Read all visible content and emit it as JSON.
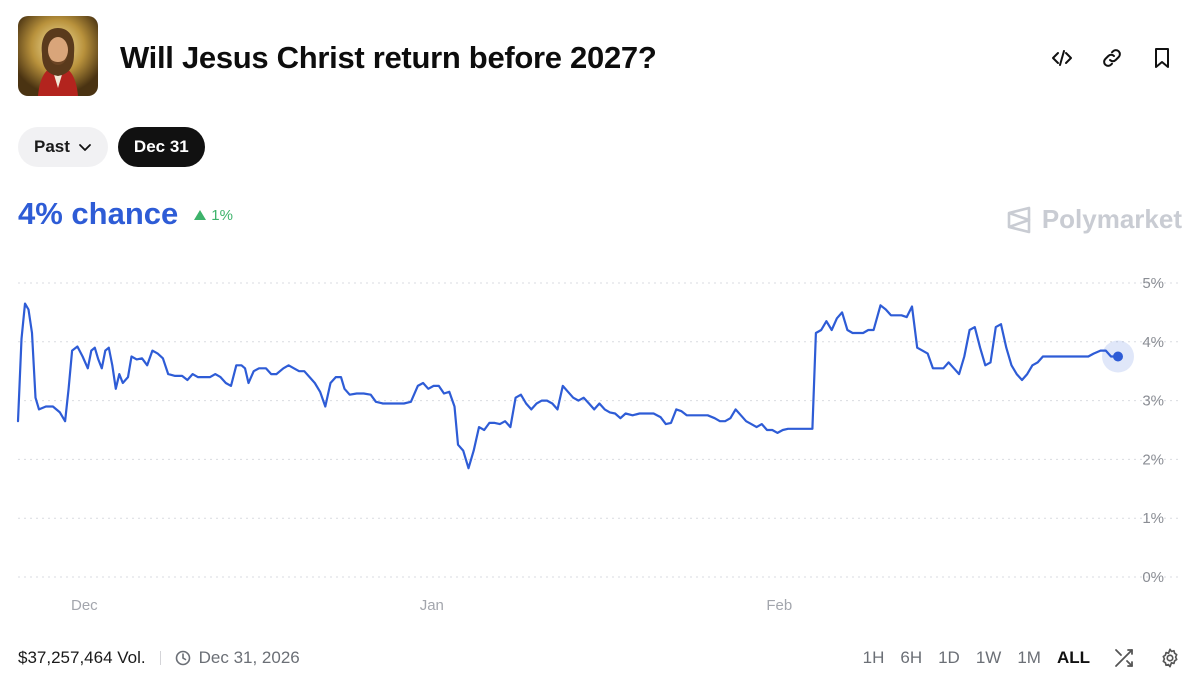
{
  "header": {
    "title": "Will Jesus Christ return before 2027?",
    "image_icon": "jesus-portrait",
    "actions": [
      {
        "name": "embed-code-icon",
        "label": "Embed"
      },
      {
        "name": "link-icon",
        "label": "Copy link"
      },
      {
        "name": "bookmark-icon",
        "label": "Bookmark"
      }
    ]
  },
  "filters": {
    "past_label": "Past",
    "active_label": "Dec 31"
  },
  "summary": {
    "chance": "4% chance",
    "change": "1%",
    "change_direction": "up"
  },
  "brand": {
    "name": "Polymarket"
  },
  "footer": {
    "volume": "$37,257,464 Vol.",
    "end_date": "Dec 31, 2026",
    "ranges": [
      "1H",
      "6H",
      "1D",
      "1W",
      "1M",
      "ALL"
    ],
    "active_range": "ALL"
  },
  "colors": {
    "line": "#2e5cd6",
    "positive": "#3db36b",
    "grid": "#d9dbe0",
    "axis_text": "#8a8d94"
  },
  "chart_data": {
    "type": "line",
    "ylim": [
      0,
      5
    ],
    "y_ticks": [
      5,
      4,
      3,
      2,
      1,
      0
    ],
    "y_tick_labels": [
      "5%",
      "4%",
      "3%",
      "2%",
      "1%",
      "0%"
    ],
    "x_tick_labels": [
      "Dec",
      "Jan",
      "Feb"
    ],
    "x_tick_positions": [
      3.8,
      23.7,
      43.6
    ],
    "xlim": [
      0,
      63
    ],
    "y_unit": "%",
    "grid": true,
    "series": [
      {
        "values": [
          [
            0,
            2.65
          ],
          [
            0.2,
            4.05
          ],
          [
            0.4,
            4.65
          ],
          [
            0.6,
            4.55
          ],
          [
            0.8,
            4.15
          ],
          [
            1.0,
            3.05
          ],
          [
            1.2,
            2.85
          ],
          [
            1.6,
            2.9
          ],
          [
            2.0,
            2.9
          ],
          [
            2.4,
            2.8
          ],
          [
            2.7,
            2.65
          ],
          [
            2.9,
            3.2
          ],
          [
            3.1,
            3.85
          ],
          [
            3.4,
            3.92
          ],
          [
            3.7,
            3.75
          ],
          [
            4.0,
            3.55
          ],
          [
            4.2,
            3.85
          ],
          [
            4.4,
            3.9
          ],
          [
            4.6,
            3.7
          ],
          [
            4.8,
            3.55
          ],
          [
            5.0,
            3.85
          ],
          [
            5.2,
            3.9
          ],
          [
            5.4,
            3.6
          ],
          [
            5.6,
            3.2
          ],
          [
            5.8,
            3.45
          ],
          [
            6.0,
            3.3
          ],
          [
            6.3,
            3.4
          ],
          [
            6.5,
            3.75
          ],
          [
            6.8,
            3.7
          ],
          [
            7.1,
            3.72
          ],
          [
            7.4,
            3.6
          ],
          [
            7.7,
            3.85
          ],
          [
            8.0,
            3.8
          ],
          [
            8.3,
            3.72
          ],
          [
            8.6,
            3.45
          ],
          [
            9.0,
            3.42
          ],
          [
            9.4,
            3.42
          ],
          [
            9.7,
            3.35
          ],
          [
            10.0,
            3.45
          ],
          [
            10.3,
            3.4
          ],
          [
            10.6,
            3.4
          ],
          [
            11.0,
            3.4
          ],
          [
            11.3,
            3.45
          ],
          [
            11.6,
            3.4
          ],
          [
            11.9,
            3.3
          ],
          [
            12.2,
            3.25
          ],
          [
            12.5,
            3.6
          ],
          [
            12.8,
            3.6
          ],
          [
            13.0,
            3.55
          ],
          [
            13.2,
            3.3
          ],
          [
            13.5,
            3.5
          ],
          [
            13.8,
            3.55
          ],
          [
            14.2,
            3.55
          ],
          [
            14.5,
            3.45
          ],
          [
            14.8,
            3.45
          ],
          [
            15.2,
            3.55
          ],
          [
            15.5,
            3.6
          ],
          [
            15.8,
            3.55
          ],
          [
            16.1,
            3.5
          ],
          [
            16.4,
            3.5
          ],
          [
            16.7,
            3.4
          ],
          [
            17.0,
            3.3
          ],
          [
            17.3,
            3.15
          ],
          [
            17.6,
            2.9
          ],
          [
            17.9,
            3.3
          ],
          [
            18.2,
            3.4
          ],
          [
            18.5,
            3.4
          ],
          [
            18.7,
            3.2
          ],
          [
            19.0,
            3.1
          ],
          [
            19.4,
            3.12
          ],
          [
            19.8,
            3.12
          ],
          [
            20.2,
            3.1
          ],
          [
            20.5,
            2.98
          ],
          [
            20.9,
            2.95
          ],
          [
            21.3,
            2.95
          ],
          [
            21.7,
            2.95
          ],
          [
            22.1,
            2.95
          ],
          [
            22.5,
            2.98
          ],
          [
            22.9,
            3.25
          ],
          [
            23.2,
            3.3
          ],
          [
            23.5,
            3.2
          ],
          [
            23.8,
            3.25
          ],
          [
            24.1,
            3.25
          ],
          [
            24.4,
            3.12
          ],
          [
            24.7,
            3.15
          ],
          [
            25.0,
            2.9
          ],
          [
            25.2,
            2.25
          ],
          [
            25.5,
            2.15
          ],
          [
            25.8,
            1.85
          ],
          [
            26.1,
            2.15
          ],
          [
            26.4,
            2.55
          ],
          [
            26.7,
            2.5
          ],
          [
            27.0,
            2.62
          ],
          [
            27.3,
            2.62
          ],
          [
            27.6,
            2.6
          ],
          [
            27.9,
            2.65
          ],
          [
            28.2,
            2.55
          ],
          [
            28.5,
            3.05
          ],
          [
            28.8,
            3.1
          ],
          [
            29.1,
            2.95
          ],
          [
            29.4,
            2.85
          ],
          [
            29.7,
            2.95
          ],
          [
            30.0,
            3.0
          ],
          [
            30.3,
            3.0
          ],
          [
            30.6,
            2.95
          ],
          [
            30.9,
            2.85
          ],
          [
            31.2,
            3.25
          ],
          [
            31.5,
            3.15
          ],
          [
            31.8,
            3.05
          ],
          [
            32.1,
            3.0
          ],
          [
            32.4,
            3.05
          ],
          [
            32.7,
            2.95
          ],
          [
            33.0,
            2.85
          ],
          [
            33.3,
            2.95
          ],
          [
            33.6,
            2.85
          ],
          [
            33.9,
            2.8
          ],
          [
            34.2,
            2.78
          ],
          [
            34.5,
            2.7
          ],
          [
            34.8,
            2.78
          ],
          [
            35.2,
            2.75
          ],
          [
            35.6,
            2.78
          ],
          [
            36.0,
            2.78
          ],
          [
            36.4,
            2.78
          ],
          [
            36.8,
            2.72
          ],
          [
            37.1,
            2.6
          ],
          [
            37.4,
            2.62
          ],
          [
            37.7,
            2.85
          ],
          [
            38.0,
            2.82
          ],
          [
            38.3,
            2.75
          ],
          [
            38.7,
            2.75
          ],
          [
            39.1,
            2.75
          ],
          [
            39.5,
            2.75
          ],
          [
            39.9,
            2.7
          ],
          [
            40.2,
            2.65
          ],
          [
            40.5,
            2.65
          ],
          [
            40.8,
            2.7
          ],
          [
            41.1,
            2.85
          ],
          [
            41.4,
            2.75
          ],
          [
            41.7,
            2.65
          ],
          [
            42.0,
            2.6
          ],
          [
            42.3,
            2.55
          ],
          [
            42.6,
            2.6
          ],
          [
            42.9,
            2.5
          ],
          [
            43.2,
            2.5
          ],
          [
            43.5,
            2.45
          ],
          [
            43.8,
            2.5
          ],
          [
            44.1,
            2.52
          ],
          [
            44.4,
            2.52
          ],
          [
            44.8,
            2.52
          ],
          [
            45.2,
            2.52
          ],
          [
            45.5,
            2.52
          ],
          [
            45.7,
            4.15
          ],
          [
            46.0,
            4.2
          ],
          [
            46.3,
            4.35
          ],
          [
            46.6,
            4.2
          ],
          [
            46.9,
            4.4
          ],
          [
            47.2,
            4.5
          ],
          [
            47.5,
            4.2
          ],
          [
            47.8,
            4.15
          ],
          [
            48.1,
            4.15
          ],
          [
            48.4,
            4.15
          ],
          [
            48.7,
            4.2
          ],
          [
            49.0,
            4.2
          ],
          [
            49.4,
            4.62
          ],
          [
            49.7,
            4.55
          ],
          [
            50.0,
            4.45
          ],
          [
            50.3,
            4.45
          ],
          [
            50.6,
            4.45
          ],
          [
            50.9,
            4.42
          ],
          [
            51.2,
            4.6
          ],
          [
            51.5,
            3.9
          ],
          [
            51.8,
            3.85
          ],
          [
            52.1,
            3.8
          ],
          [
            52.4,
            3.55
          ],
          [
            52.7,
            3.55
          ],
          [
            53.0,
            3.55
          ],
          [
            53.3,
            3.65
          ],
          [
            53.6,
            3.55
          ],
          [
            53.9,
            3.45
          ],
          [
            54.2,
            3.75
          ],
          [
            54.5,
            4.2
          ],
          [
            54.8,
            4.25
          ],
          [
            55.1,
            3.9
          ],
          [
            55.4,
            3.6
          ],
          [
            55.7,
            3.65
          ],
          [
            56.0,
            4.25
          ],
          [
            56.3,
            4.3
          ],
          [
            56.6,
            3.9
          ],
          [
            56.9,
            3.6
          ],
          [
            57.2,
            3.45
          ],
          [
            57.5,
            3.35
          ],
          [
            57.8,
            3.45
          ],
          [
            58.1,
            3.6
          ],
          [
            58.4,
            3.65
          ],
          [
            58.7,
            3.75
          ],
          [
            59.0,
            3.75
          ],
          [
            59.6,
            3.75
          ],
          [
            60.2,
            3.75
          ],
          [
            60.8,
            3.75
          ],
          [
            61.3,
            3.75
          ],
          [
            61.6,
            3.8
          ],
          [
            62.0,
            3.85
          ],
          [
            62.3,
            3.85
          ],
          [
            62.6,
            3.75
          ],
          [
            63.0,
            3.75
          ]
        ]
      }
    ]
  }
}
